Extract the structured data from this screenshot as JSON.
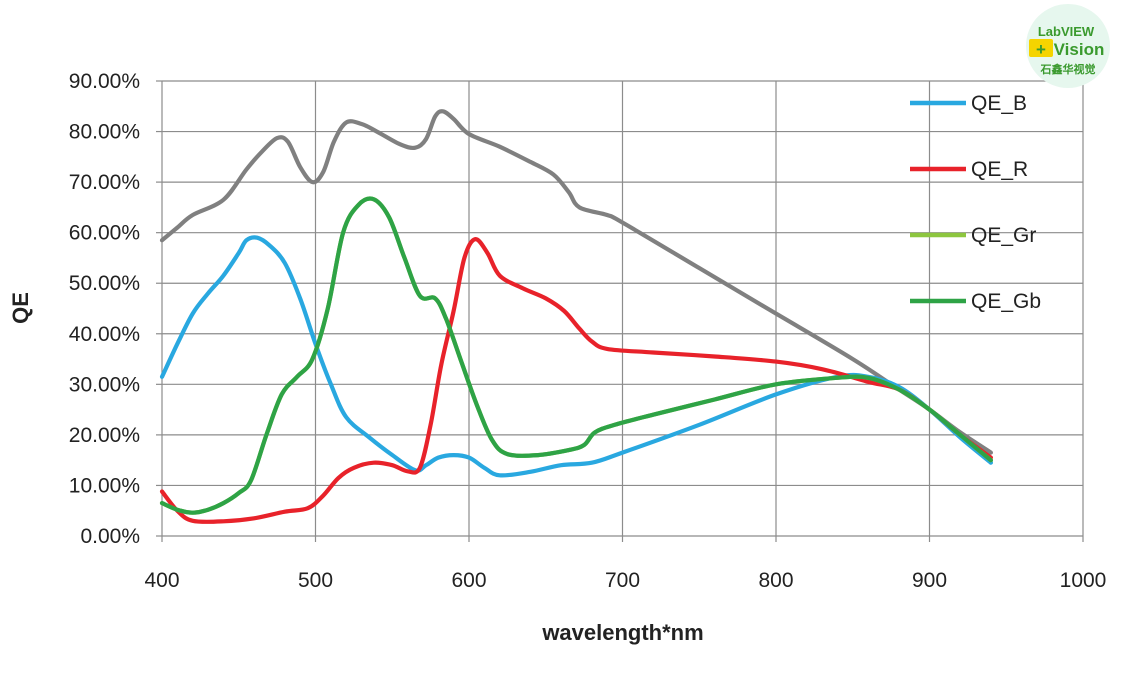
{
  "chart_data": {
    "type": "line",
    "title": "",
    "xlabel": "wavelength*nm",
    "ylabel": "QE",
    "xlim": [
      400,
      1000
    ],
    "ylim": [
      0,
      90
    ],
    "xticks": [
      400,
      500,
      600,
      700,
      800,
      900,
      1000
    ],
    "xtick_labels": [
      "400",
      "500",
      "600",
      "700",
      "800",
      "900",
      "1000"
    ],
    "yticks": [
      0,
      10,
      20,
      30,
      40,
      50,
      60,
      70,
      80,
      90
    ],
    "ytick_labels": [
      "0.00%",
      "10.00%",
      "20.00%",
      "30.00%",
      "40.00%",
      "50.00%",
      "60.00%",
      "70.00%",
      "80.00%",
      "90.00%"
    ],
    "grid": true,
    "legend_position": "right",
    "series": [
      {
        "name": "",
        "color": "#808080",
        "in_legend": false,
        "points": [
          [
            400,
            58.5
          ],
          [
            410,
            61
          ],
          [
            420,
            63.5
          ],
          [
            440,
            66.5
          ],
          [
            455,
            72.5
          ],
          [
            465,
            76
          ],
          [
            475,
            78.7
          ],
          [
            482,
            78
          ],
          [
            490,
            73
          ],
          [
            498,
            70
          ],
          [
            505,
            72
          ],
          [
            512,
            78
          ],
          [
            520,
            81.8
          ],
          [
            530,
            81.5
          ],
          [
            540,
            80
          ],
          [
            555,
            77.5
          ],
          [
            565,
            76.8
          ],
          [
            572,
            78.5
          ],
          [
            578,
            83
          ],
          [
            583,
            84
          ],
          [
            590,
            82.5
          ],
          [
            600,
            79.5
          ],
          [
            620,
            77
          ],
          [
            640,
            74
          ],
          [
            655,
            71.5
          ],
          [
            665,
            68
          ],
          [
            672,
            65
          ],
          [
            690,
            63.5
          ],
          [
            700,
            62
          ],
          [
            750,
            53
          ],
          [
            800,
            44
          ],
          [
            850,
            35
          ],
          [
            880,
            29
          ],
          [
            900,
            25
          ],
          [
            920,
            20.5
          ],
          [
            940,
            16.5
          ]
        ]
      },
      {
        "name": "QE_B",
        "color": "#29a8e0",
        "in_legend": true,
        "points": [
          [
            400,
            31.5
          ],
          [
            410,
            38
          ],
          [
            420,
            44
          ],
          [
            430,
            48
          ],
          [
            440,
            51.5
          ],
          [
            450,
            56
          ],
          [
            455,
            58.5
          ],
          [
            462,
            59
          ],
          [
            470,
            57.5
          ],
          [
            480,
            54
          ],
          [
            490,
            47
          ],
          [
            500,
            38
          ],
          [
            510,
            30
          ],
          [
            520,
            23.5
          ],
          [
            535,
            19.5
          ],
          [
            550,
            16
          ],
          [
            565,
            13
          ],
          [
            572,
            14
          ],
          [
            580,
            15.5
          ],
          [
            590,
            16
          ],
          [
            600,
            15.5
          ],
          [
            610,
            13.5
          ],
          [
            620,
            12
          ],
          [
            640,
            12.7
          ],
          [
            660,
            14
          ],
          [
            680,
            14.5
          ],
          [
            700,
            16.5
          ],
          [
            750,
            22
          ],
          [
            800,
            28
          ],
          [
            840,
            31.5
          ],
          [
            860,
            31.5
          ],
          [
            880,
            29.5
          ],
          [
            900,
            25
          ],
          [
            920,
            19.5
          ],
          [
            940,
            14.5
          ]
        ]
      },
      {
        "name": "QE_R",
        "color": "#e8222a",
        "in_legend": true,
        "points": [
          [
            400,
            8.8
          ],
          [
            410,
            5
          ],
          [
            420,
            3
          ],
          [
            440,
            2.9
          ],
          [
            460,
            3.5
          ],
          [
            480,
            4.8
          ],
          [
            495,
            5.5
          ],
          [
            505,
            8
          ],
          [
            515,
            11.5
          ],
          [
            525,
            13.5
          ],
          [
            538,
            14.5
          ],
          [
            550,
            14
          ],
          [
            560,
            12.8
          ],
          [
            568,
            13.5
          ],
          [
            575,
            22
          ],
          [
            582,
            34
          ],
          [
            590,
            44.5
          ],
          [
            597,
            55
          ],
          [
            604,
            58.7
          ],
          [
            612,
            56
          ],
          [
            620,
            51.5
          ],
          [
            635,
            49
          ],
          [
            650,
            47
          ],
          [
            662,
            44.5
          ],
          [
            672,
            41
          ],
          [
            680,
            38.5
          ],
          [
            690,
            37
          ],
          [
            720,
            36.3
          ],
          [
            760,
            35.5
          ],
          [
            800,
            34.5
          ],
          [
            830,
            33
          ],
          [
            860,
            30.5
          ],
          [
            880,
            29
          ],
          [
            900,
            25
          ],
          [
            920,
            20
          ],
          [
            940,
            15.5
          ]
        ]
      },
      {
        "name": "QE_Gr",
        "color": "#8dc63f",
        "in_legend": true,
        "points": [
          [
            400,
            6.5
          ],
          [
            410,
            5.2
          ],
          [
            420,
            4.6
          ],
          [
            430,
            5.2
          ],
          [
            440,
            6.5
          ],
          [
            450,
            8.5
          ],
          [
            458,
            11
          ],
          [
            468,
            20
          ],
          [
            478,
            28
          ],
          [
            488,
            31.5
          ],
          [
            498,
            35
          ],
          [
            508,
            45
          ],
          [
            518,
            60
          ],
          [
            528,
            65.5
          ],
          [
            538,
            66.6
          ],
          [
            548,
            63
          ],
          [
            558,
            55
          ],
          [
            568,
            47.5
          ],
          [
            578,
            47
          ],
          [
            585,
            43
          ],
          [
            595,
            34.5
          ],
          [
            605,
            26
          ],
          [
            615,
            19
          ],
          [
            625,
            16.2
          ],
          [
            645,
            16
          ],
          [
            665,
            17
          ],
          [
            675,
            18
          ],
          [
            682,
            20.5
          ],
          [
            695,
            22
          ],
          [
            720,
            24
          ],
          [
            760,
            27
          ],
          [
            800,
            30
          ],
          [
            840,
            31.3
          ],
          [
            860,
            31.3
          ],
          [
            880,
            29
          ],
          [
            900,
            25
          ],
          [
            920,
            20
          ],
          [
            940,
            15
          ]
        ]
      },
      {
        "name": "QE_Gb",
        "color": "#2ea346",
        "in_legend": true,
        "points": [
          [
            400,
            6.5
          ],
          [
            410,
            5.2
          ],
          [
            420,
            4.6
          ],
          [
            430,
            5.2
          ],
          [
            440,
            6.5
          ],
          [
            450,
            8.5
          ],
          [
            458,
            11
          ],
          [
            468,
            20
          ],
          [
            478,
            28
          ],
          [
            488,
            31.5
          ],
          [
            498,
            35
          ],
          [
            508,
            45
          ],
          [
            518,
            60
          ],
          [
            528,
            65.5
          ],
          [
            538,
            66.6
          ],
          [
            548,
            63
          ],
          [
            558,
            55
          ],
          [
            568,
            47.5
          ],
          [
            578,
            47
          ],
          [
            585,
            43
          ],
          [
            595,
            34.5
          ],
          [
            605,
            26
          ],
          [
            615,
            19
          ],
          [
            625,
            16.2
          ],
          [
            645,
            16
          ],
          [
            665,
            17
          ],
          [
            675,
            18
          ],
          [
            682,
            20.5
          ],
          [
            695,
            22
          ],
          [
            720,
            24
          ],
          [
            760,
            27
          ],
          [
            800,
            30
          ],
          [
            840,
            31.3
          ],
          [
            860,
            31.3
          ],
          [
            880,
            29
          ],
          [
            900,
            25
          ],
          [
            920,
            20
          ],
          [
            940,
            15
          ]
        ]
      }
    ]
  },
  "logo": {
    "line1": "LabVIEW",
    "line2": "Vision",
    "line3": "石鑫华视觉",
    "plus": "+",
    "bg_color": "#e6f7ee",
    "text_color": "#3a9a2e",
    "plus_bg": "#f5d400"
  }
}
